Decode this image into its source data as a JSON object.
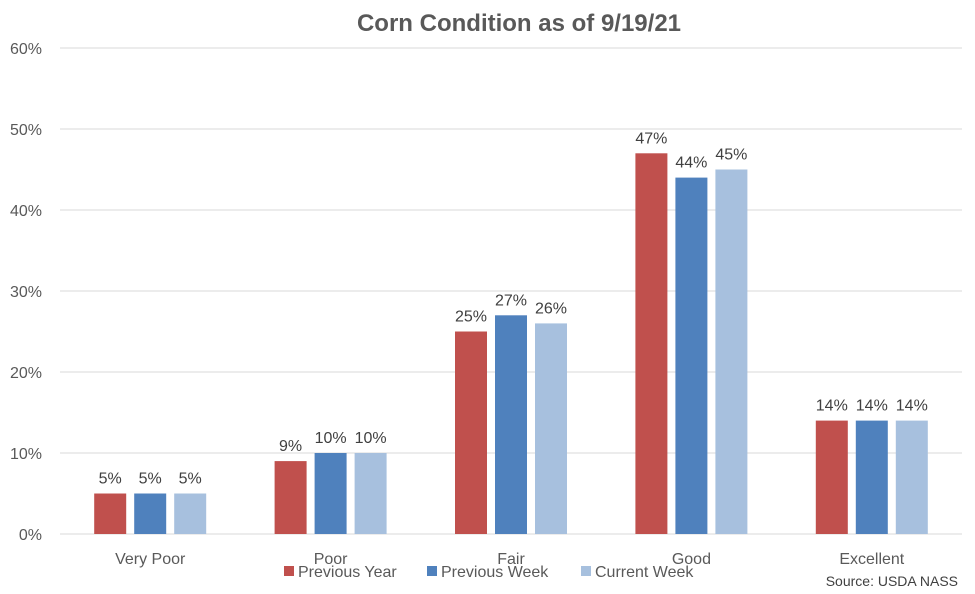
{
  "chart_data": {
    "type": "bar",
    "title": "Corn Condition as of 9/19/21",
    "categories": [
      "Very Poor",
      "Poor",
      "Fair",
      "Good",
      "Excellent"
    ],
    "series": [
      {
        "name": "Previous Year",
        "values": [
          5,
          9,
          25,
          47,
          14
        ],
        "labels": [
          "5%",
          "9%",
          "25%",
          "47%",
          "14%"
        ],
        "color": "#c0504d"
      },
      {
        "name": "Previous Week",
        "values": [
          5,
          10,
          27,
          44,
          14
        ],
        "labels": [
          "5%",
          "10%",
          "27%",
          "44%",
          "14%"
        ],
        "color": "#4f81bd"
      },
      {
        "name": "Current Week",
        "values": [
          5,
          10,
          26,
          45,
          14
        ],
        "labels": [
          "5%",
          "10%",
          "26%",
          "45%",
          "14%"
        ],
        "color": "#a7c0de"
      }
    ],
    "y_ticks": [
      {
        "value": 0,
        "label": "0%"
      },
      {
        "value": 10,
        "label": "10%"
      },
      {
        "value": 20,
        "label": "20%"
      },
      {
        "value": 30,
        "label": "30%"
      },
      {
        "value": 40,
        "label": "40%"
      },
      {
        "value": 50,
        "label": "50%"
      },
      {
        "value": 60,
        "label": "60%"
      }
    ],
    "ylim": [
      0,
      60
    ],
    "grid": true,
    "legend_position": "bottom",
    "source": "Source: USDA NASS"
  }
}
